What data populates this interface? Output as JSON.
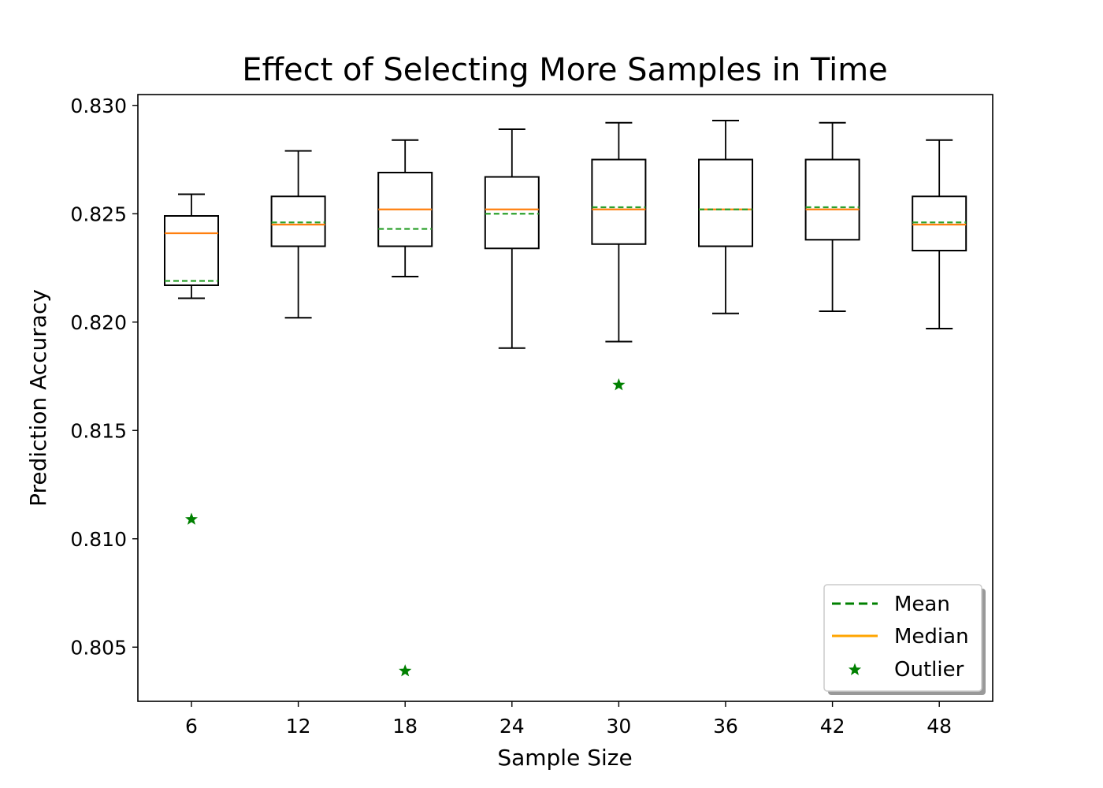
{
  "chart_data": {
    "type": "box",
    "title": "Effect of Selecting More Samples in Time",
    "xlabel": "Sample Size",
    "ylabel": "Prediction Accuracy",
    "categories": [
      "6",
      "12",
      "18",
      "24",
      "30",
      "36",
      "42",
      "48"
    ],
    "ylim": [
      0.8025,
      0.8305
    ],
    "yticks": [
      "0.805",
      "0.810",
      "0.815",
      "0.820",
      "0.825",
      "0.830"
    ],
    "ytick_values": [
      0.805,
      0.81,
      0.815,
      0.82,
      0.825,
      0.83
    ],
    "boxes": [
      {
        "category": "6",
        "whisker_low": 0.8211,
        "q1": 0.8217,
        "median": 0.8241,
        "mean": 0.8219,
        "q3": 0.8249,
        "whisker_high": 0.8259,
        "outliers": [
          0.8109
        ]
      },
      {
        "category": "12",
        "whisker_low": 0.8202,
        "q1": 0.8235,
        "median": 0.8245,
        "mean": 0.8246,
        "q3": 0.8258,
        "whisker_high": 0.8279,
        "outliers": []
      },
      {
        "category": "18",
        "whisker_low": 0.8221,
        "q1": 0.8235,
        "median": 0.8252,
        "mean": 0.8243,
        "q3": 0.8269,
        "whisker_high": 0.8284,
        "outliers": [
          0.8039
        ]
      },
      {
        "category": "24",
        "whisker_low": 0.8188,
        "q1": 0.8234,
        "median": 0.8252,
        "mean": 0.825,
        "q3": 0.8267,
        "whisker_high": 0.8289,
        "outliers": []
      },
      {
        "category": "30",
        "whisker_low": 0.8191,
        "q1": 0.8236,
        "median": 0.8252,
        "mean": 0.8253,
        "q3": 0.8275,
        "whisker_high": 0.8292,
        "outliers": [
          0.8171
        ]
      },
      {
        "category": "36",
        "whisker_low": 0.8204,
        "q1": 0.8235,
        "median": 0.8252,
        "mean": 0.8252,
        "q3": 0.8275,
        "whisker_high": 0.8293,
        "outliers": []
      },
      {
        "category": "42",
        "whisker_low": 0.8205,
        "q1": 0.8238,
        "median": 0.8252,
        "mean": 0.8253,
        "q3": 0.8275,
        "whisker_high": 0.8292,
        "outliers": []
      },
      {
        "category": "48",
        "whisker_low": 0.8197,
        "q1": 0.8233,
        "median": 0.8245,
        "mean": 0.8246,
        "q3": 0.8258,
        "whisker_high": 0.8284,
        "outliers": []
      }
    ],
    "legend": {
      "placement": "lower-right",
      "entries": [
        {
          "label": "Mean",
          "style": "dashed-line",
          "color": "#008000"
        },
        {
          "label": "Median",
          "style": "line",
          "color": "#ffa500"
        },
        {
          "label": "Outlier",
          "style": "star-marker",
          "color": "#008000"
        }
      ]
    },
    "colors": {
      "median": "#ff7f0e",
      "mean": "#2ca02c",
      "outlier": "#008000",
      "box": "#000000"
    },
    "grid": false
  }
}
